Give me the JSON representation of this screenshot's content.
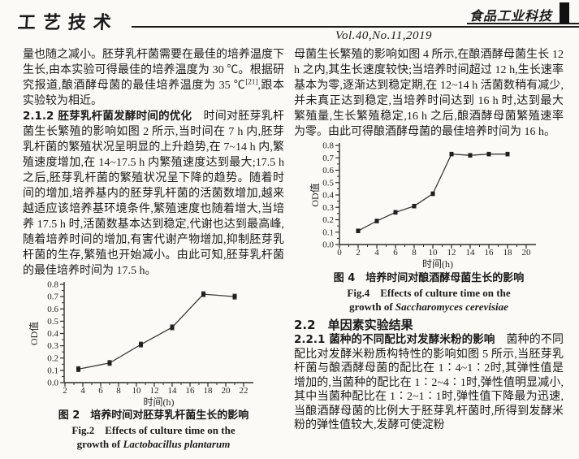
{
  "header": {
    "banner": "工艺技术",
    "journal_logo": "食品工业科技",
    "volume": "Vol.40,No.11,2019"
  },
  "left_column": {
    "p1_before_sup": "量也随之减小。胚芽乳杆菌需要在最佳的培养温度下生长,由本实验可得最佳的培养温度为 30 ℃。根据研究报道,酿酒酵母菌的最佳培养温度为 35 ℃",
    "p1_sup": "[21]",
    "p1_after_sup": ",跟本实验较为相近。",
    "sec212_heading": "2.1.2 胚芽乳杆菌发酵时间的优化",
    "sec212_body": "　时间对胚芽乳杆菌生长繁殖的影响如图 2 所示,当时间在 7 h 内,胚芽乳杆菌的繁殖状况呈明显的上升趋势,在 7~14 h 内,繁殖速度增加,在 14~17.5 h 内繁殖速度达到最大;17.5 h 之后,胚芽乳杆菌的繁殖状况呈下降的趋势。随着时间的增加,培养基内的胚芽乳杆菌的活菌数增加,越来越适应该培养基环境条件,繁殖速度也随着增大,当培养 17.5 h 时,活菌数基本达到稳定,代谢也达到最高峰,随着培养时间的增加,有害代谢产物增加,抑制胚芽乳杆菌的生存,繁殖也开始减小。由此可知,胚芽乳杆菌的最佳培养时间为 17.5 h。"
  },
  "right_column": {
    "p1": "母菌生长繁殖的影响如图 4 所示,在酿酒酵母菌生长 12 h 之内,其生长速度较快;当培养时间超过 12 h,生长速率基本为零,逐渐达到稳定期,在 12~14 h 活菌数稍有减少,并未真正达到稳定,当培养时间达到 16 h 时,达到最大繁殖量,生长繁殖稳定,16 h 之后,酿酒酵母菌繁殖速率为零。由此可得酿酒酵母菌的最佳培养时间为 16 h。",
    "sec22_heading": "2.2　单因素实验结果",
    "sec221_heading": "2.2.1 菌种的不同配比对发酵米粉的影响",
    "sec221_body": "　菌种的不同配比对发酵米粉质构特性的影响如图 5 所示,当胚芽乳杆菌与酿酒酵母菌的配比在 1∶4~1∶2时,其弹性值是增加的,当菌种的配比在 1∶2~4∶1时,弹性值明显减小,其中当菌种配比在 1∶2~1∶1时,弹性值下降最为迅速,当酿酒酵母菌的比例大于胚芽乳杆菌时,所得到发酵米粉的弹性值较大,发酵可使淀粉"
  },
  "chart_data": [
    {
      "id": "fig2",
      "type": "line",
      "x": [
        3.5,
        7,
        10.5,
        14,
        17.5,
        21
      ],
      "y": [
        0.11,
        0.16,
        0.31,
        0.45,
        0.72,
        0.7
      ],
      "yerr": 0.02,
      "xlabel": "时间(h)",
      "ylabel": "OD值",
      "xlim": [
        2,
        23
      ],
      "ylim": [
        0,
        0.8
      ],
      "xticks": [
        2,
        4,
        6,
        8,
        10,
        12,
        14,
        16,
        18,
        20,
        22
      ],
      "yticks": [
        0,
        0.1,
        0.2,
        0.3,
        0.4,
        0.5,
        0.6,
        0.7,
        0.8
      ],
      "marker": "square",
      "line_color": "#3a3a3a",
      "grid": false,
      "legend": "none",
      "title_zh": "图 2　培养时间对胚芽乳杆菌生长的影响",
      "title_en1": "Fig.2　Effects of culture time on the",
      "title_en2_prefix": "growth of ",
      "title_en2_species": "Lactobacillus plantarum"
    },
    {
      "id": "fig4",
      "type": "line",
      "x": [
        2,
        4,
        6,
        8,
        10,
        12,
        14,
        16,
        18
      ],
      "y": [
        0.11,
        0.19,
        0.26,
        0.31,
        0.41,
        0.73,
        0.72,
        0.73,
        0.73
      ],
      "yerr": 0.015,
      "xlabel": "时间(h)",
      "ylabel": "OD值",
      "xlim": [
        0,
        20
      ],
      "ylim": [
        0,
        0.8
      ],
      "xticks": [
        0,
        2,
        4,
        6,
        8,
        10,
        12,
        14,
        16,
        18,
        20
      ],
      "yticks": [
        0,
        0.1,
        0.2,
        0.3,
        0.4,
        0.5,
        0.6,
        0.7,
        0.8
      ],
      "marker": "square",
      "line_color": "#3a3a3a",
      "grid": false,
      "legend": "none",
      "title_zh": "图 4　培养时间对酿酒酵母菌生长的影响",
      "title_en1": "Fig.4　Effects of culture time on the",
      "title_en2_prefix": "growth of ",
      "title_en2_species": "Saccharomyces cerevisiae"
    }
  ]
}
